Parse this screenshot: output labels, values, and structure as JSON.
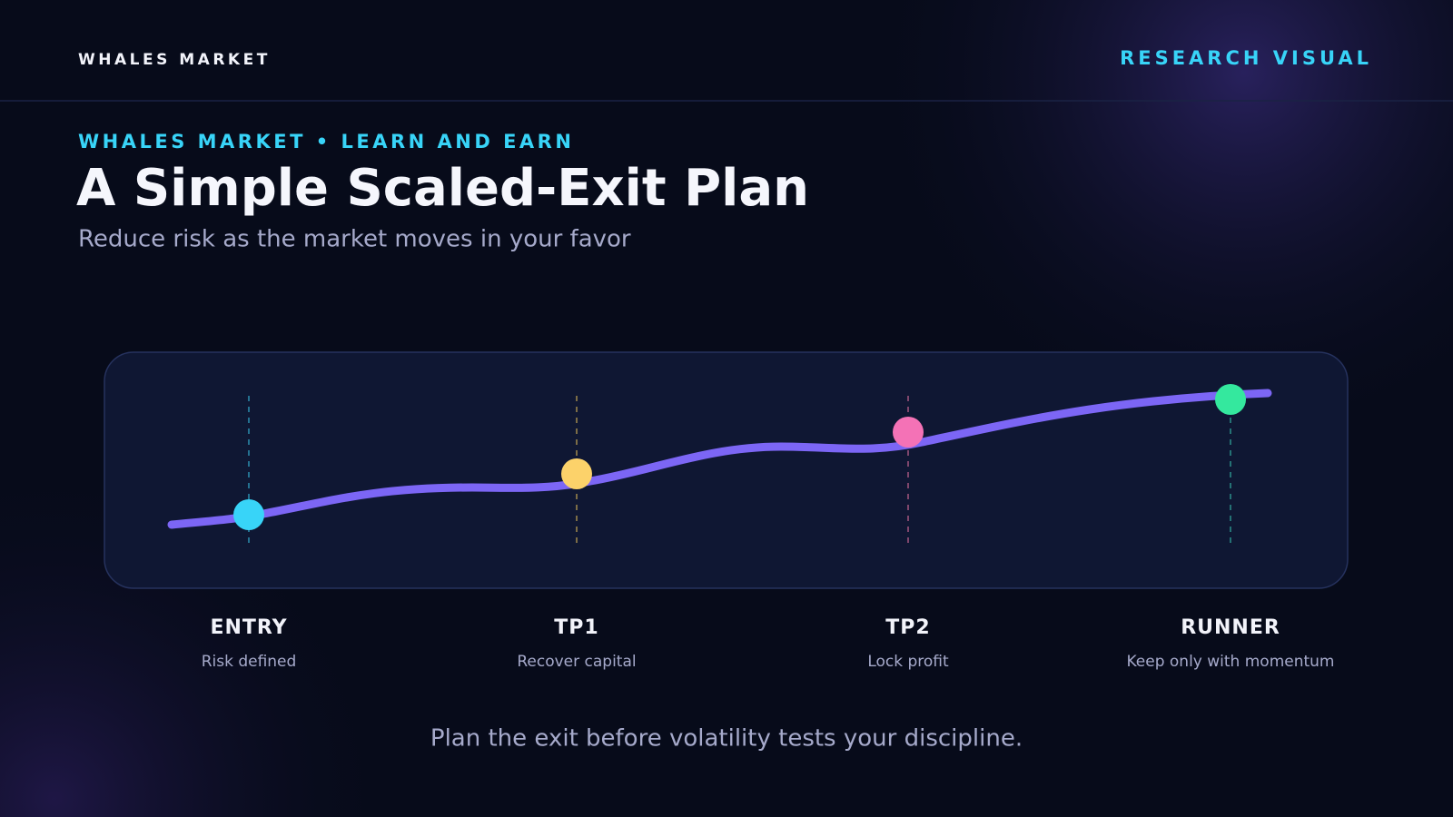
{
  "header": {
    "brand": "WHALES MARKET",
    "tag": "RESEARCH VISUAL"
  },
  "kicker": "WHALES MARKET • LEARN AND EARN",
  "title": "A Simple Scaled-Exit Plan",
  "subtitle": "Reduce risk as the market moves in your favor",
  "stages": [
    {
      "label": "ENTRY",
      "caption": "Risk defined"
    },
    {
      "label": "TP1",
      "caption": "Recover capital"
    },
    {
      "label": "TP2",
      "caption": "Lock profit"
    },
    {
      "label": "RUNNER",
      "caption": "Keep only with momentum"
    }
  ],
  "footer": "Plan the exit before volatility tests your discipline."
}
